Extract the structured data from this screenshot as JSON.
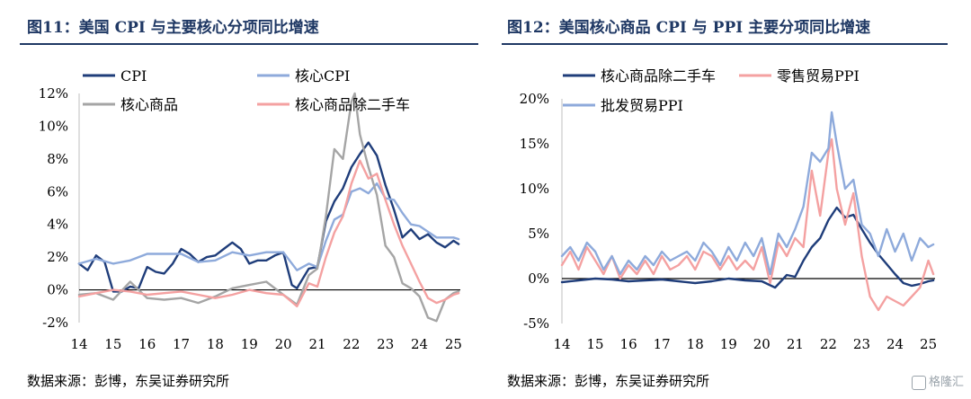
{
  "panels": [
    {
      "title": "图11：美国 CPI 与主要核心分项同比增速",
      "source": "数据来源：彭博，东吴证券研究所"
    },
    {
      "title": "图12：美国核心商品 CPI 与 PPI 主要分项同比增速",
      "source": "数据来源：彭博，东吴证券研究所"
    }
  ],
  "watermark": "格隆汇",
  "chart_data": [
    {
      "type": "line",
      "title": "图11：美国 CPI 与主要核心分项同比增速",
      "xlabel": "",
      "ylabel": "",
      "x_ticks": [
        "14",
        "15",
        "16",
        "17",
        "18",
        "19",
        "20",
        "21",
        "22",
        "23",
        "24",
        "25"
      ],
      "xlim": [
        2014,
        2025.2
      ],
      "y_ticks": [
        "-2%",
        "0%",
        "2%",
        "4%",
        "6%",
        "8%",
        "10%",
        "12%"
      ],
      "ylim": [
        -2,
        12
      ],
      "legend_position": "top",
      "series": [
        {
          "name": "CPI",
          "color": "#1f3d7a",
          "x": [
            2014.0,
            2014.25,
            2014.5,
            2014.75,
            2015.0,
            2015.25,
            2015.5,
            2015.75,
            2016.0,
            2016.25,
            2016.5,
            2016.75,
            2017.0,
            2017.25,
            2017.5,
            2017.75,
            2018.0,
            2018.25,
            2018.5,
            2018.75,
            2019.0,
            2019.25,
            2019.5,
            2019.75,
            2020.0,
            2020.25,
            2020.4,
            2020.75,
            2021.0,
            2021.25,
            2021.5,
            2021.75,
            2022.0,
            2022.25,
            2022.5,
            2022.75,
            2023.0,
            2023.25,
            2023.5,
            2023.75,
            2024.0,
            2024.25,
            2024.5,
            2024.75,
            2025.0,
            2025.15
          ],
          "y": [
            1.6,
            1.2,
            2.1,
            1.7,
            -0.1,
            -0.1,
            0.2,
            0.1,
            1.4,
            1.1,
            1.0,
            1.6,
            2.5,
            2.2,
            1.7,
            2.0,
            2.1,
            2.5,
            2.9,
            2.5,
            1.6,
            1.8,
            1.8,
            2.1,
            2.3,
            0.3,
            0.1,
            1.3,
            1.4,
            4.2,
            5.4,
            6.2,
            7.5,
            8.3,
            9.0,
            8.2,
            6.4,
            4.9,
            3.2,
            3.7,
            3.1,
            3.4,
            2.9,
            2.6,
            3.0,
            2.8
          ]
        },
        {
          "name": "核心CPI",
          "color": "#8eaadb",
          "x": [
            2014.0,
            2014.5,
            2015.0,
            2015.5,
            2016.0,
            2016.5,
            2017.0,
            2017.5,
            2018.0,
            2018.5,
            2019.0,
            2019.5,
            2020.0,
            2020.4,
            2020.75,
            2021.0,
            2021.25,
            2021.5,
            2021.75,
            2022.0,
            2022.25,
            2022.5,
            2022.75,
            2023.0,
            2023.25,
            2023.5,
            2023.75,
            2024.0,
            2024.5,
            2025.0,
            2025.15
          ],
          "y": [
            1.6,
            1.9,
            1.6,
            1.8,
            2.2,
            2.2,
            2.2,
            1.7,
            1.8,
            2.3,
            2.1,
            2.3,
            2.3,
            1.2,
            1.6,
            1.4,
            3.0,
            4.3,
            4.6,
            6.0,
            6.2,
            5.9,
            6.5,
            5.6,
            5.5,
            4.7,
            4.0,
            3.9,
            3.2,
            3.2,
            3.1
          ]
        },
        {
          "name": "核心商品",
          "color": "#a5a5a5",
          "x": [
            2014.0,
            2014.5,
            2015.0,
            2015.5,
            2016.0,
            2016.5,
            2017.0,
            2017.5,
            2018.0,
            2018.5,
            2019.0,
            2019.5,
            2020.0,
            2020.4,
            2020.75,
            2021.0,
            2021.25,
            2021.5,
            2021.75,
            2022.0,
            2022.1,
            2022.25,
            2022.5,
            2022.75,
            2023.0,
            2023.25,
            2023.5,
            2023.75,
            2024.0,
            2024.25,
            2024.5,
            2024.75,
            2025.0,
            2025.15
          ],
          "y": [
            -0.3,
            -0.2,
            -0.6,
            0.5,
            -0.5,
            -0.6,
            -0.5,
            -0.8,
            -0.4,
            0.1,
            0.3,
            0.5,
            -0.3,
            -0.9,
            0.9,
            1.3,
            4.5,
            8.6,
            8.0,
            11.5,
            12.0,
            9.5,
            7.5,
            5.8,
            2.7,
            2.0,
            0.4,
            0.1,
            -0.4,
            -1.7,
            -1.9,
            -0.6,
            -0.2,
            -0.1
          ]
        },
        {
          "name": "核心商品除二手车",
          "color": "#f4a1a1",
          "x": [
            2014.0,
            2014.5,
            2015.0,
            2015.5,
            2016.0,
            2016.5,
            2017.0,
            2017.5,
            2018.0,
            2018.5,
            2019.0,
            2019.5,
            2020.0,
            2020.4,
            2020.75,
            2021.0,
            2021.25,
            2021.5,
            2021.75,
            2022.0,
            2022.25,
            2022.5,
            2022.75,
            2023.0,
            2023.25,
            2023.5,
            2023.75,
            2024.0,
            2024.25,
            2024.5,
            2024.75,
            2025.0,
            2025.15
          ],
          "y": [
            -0.4,
            -0.2,
            0.0,
            -0.1,
            -0.3,
            -0.2,
            -0.1,
            -0.3,
            -0.5,
            -0.3,
            0.0,
            -0.2,
            -0.3,
            -1.0,
            0.4,
            0.2,
            2.0,
            3.5,
            4.5,
            6.5,
            7.9,
            6.8,
            7.1,
            5.5,
            4.0,
            2.7,
            1.6,
            0.5,
            -0.5,
            -0.8,
            -0.6,
            -0.3,
            -0.2
          ]
        }
      ]
    },
    {
      "type": "line",
      "title": "图12：美国核心商品 CPI 与 PPI 主要分项同比增速",
      "xlabel": "",
      "ylabel": "",
      "x_ticks": [
        "14",
        "15",
        "16",
        "17",
        "18",
        "19",
        "20",
        "21",
        "22",
        "23",
        "24",
        "25"
      ],
      "xlim": [
        2014,
        2025.2
      ],
      "y_ticks": [
        "-5%",
        "0%",
        "5%",
        "10%",
        "15%",
        "20%"
      ],
      "ylim": [
        -5,
        20
      ],
      "legend_position": "top",
      "series": [
        {
          "name": "核心商品除二手车",
          "color": "#1f3d7a",
          "x": [
            2014.0,
            2014.5,
            2015.0,
            2015.5,
            2016.0,
            2016.5,
            2017.0,
            2017.5,
            2018.0,
            2018.5,
            2019.0,
            2019.5,
            2020.0,
            2020.4,
            2020.75,
            2021.0,
            2021.25,
            2021.5,
            2021.75,
            2022.0,
            2022.25,
            2022.5,
            2022.75,
            2023.0,
            2023.25,
            2023.5,
            2023.75,
            2024.0,
            2024.25,
            2024.5,
            2024.75,
            2025.0,
            2025.15
          ],
          "y": [
            -0.4,
            -0.2,
            0.0,
            -0.1,
            -0.3,
            -0.2,
            -0.1,
            -0.3,
            -0.5,
            -0.3,
            0.0,
            -0.2,
            -0.3,
            -1.0,
            0.4,
            0.2,
            2.0,
            3.5,
            4.5,
            6.5,
            7.9,
            6.8,
            7.1,
            5.5,
            4.0,
            2.7,
            1.6,
            0.5,
            -0.5,
            -0.8,
            -0.6,
            -0.3,
            -0.2
          ]
        },
        {
          "name": "零售贸易PPI",
          "color": "#f4a1a1",
          "x": [
            2014.0,
            2014.25,
            2014.5,
            2014.75,
            2015.0,
            2015.25,
            2015.5,
            2015.75,
            2016.0,
            2016.25,
            2016.5,
            2016.75,
            2017.0,
            2017.25,
            2017.5,
            2017.75,
            2018.0,
            2018.25,
            2018.5,
            2018.75,
            2019.0,
            2019.25,
            2019.5,
            2019.75,
            2020.0,
            2020.25,
            2020.5,
            2020.75,
            2021.0,
            2021.25,
            2021.5,
            2021.75,
            2022.0,
            2022.1,
            2022.25,
            2022.5,
            2022.75,
            2023.0,
            2023.25,
            2023.5,
            2023.75,
            2024.0,
            2024.25,
            2024.5,
            2024.75,
            2025.0,
            2025.15
          ],
          "y": [
            1.5,
            3.0,
            1.0,
            3.5,
            2.0,
            0.5,
            2.5,
            0.0,
            1.5,
            0.5,
            2.0,
            0.5,
            2.5,
            1.0,
            1.5,
            2.5,
            1.0,
            3.0,
            2.5,
            1.0,
            2.5,
            1.0,
            2.0,
            1.0,
            3.5,
            -0.5,
            4.0,
            2.5,
            4.5,
            3.5,
            12.0,
            7.0,
            14.0,
            15.5,
            10.0,
            6.0,
            9.5,
            2.5,
            -2.0,
            -3.5,
            -2.0,
            -2.5,
            -3.0,
            -2.0,
            -1.0,
            2.0,
            0.5
          ]
        },
        {
          "name": "批发贸易PPI",
          "color": "#8eaadb",
          "x": [
            2014.0,
            2014.25,
            2014.5,
            2014.75,
            2015.0,
            2015.25,
            2015.5,
            2015.75,
            2016.0,
            2016.25,
            2016.5,
            2016.75,
            2017.0,
            2017.25,
            2017.5,
            2017.75,
            2018.0,
            2018.25,
            2018.5,
            2018.75,
            2019.0,
            2019.25,
            2019.5,
            2019.75,
            2020.0,
            2020.25,
            2020.5,
            2020.75,
            2021.0,
            2021.25,
            2021.5,
            2021.75,
            2022.0,
            2022.1,
            2022.25,
            2022.5,
            2022.75,
            2023.0,
            2023.25,
            2023.5,
            2023.75,
            2024.0,
            2024.25,
            2024.5,
            2024.75,
            2025.0,
            2025.15
          ],
          "y": [
            2.5,
            3.5,
            2.0,
            4.0,
            3.0,
            1.0,
            2.5,
            0.5,
            2.0,
            1.0,
            2.5,
            1.5,
            3.0,
            2.0,
            2.5,
            3.0,
            2.0,
            4.0,
            3.0,
            1.5,
            3.5,
            2.0,
            4.0,
            2.5,
            4.5,
            0.5,
            5.0,
            3.5,
            5.5,
            8.0,
            14.0,
            13.0,
            14.5,
            18.5,
            15.0,
            10.0,
            11.0,
            6.0,
            5.0,
            2.5,
            5.5,
            3.0,
            5.0,
            2.0,
            4.5,
            3.5,
            3.8
          ]
        }
      ]
    }
  ]
}
